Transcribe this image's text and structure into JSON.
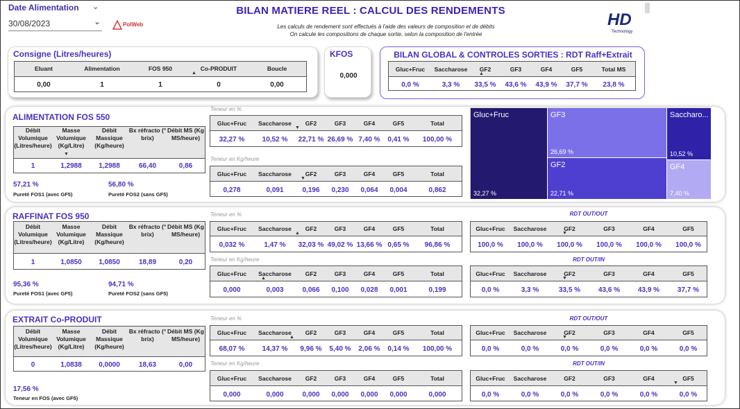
{
  "slicer": {
    "label": "Date Alimentation",
    "date": "30/08/2023"
  },
  "brand": {
    "polweb": "PolWeb",
    "hd": "HD",
    "hd_sub": "Technology"
  },
  "header": {
    "title": "BILAN MATIERE REEL : CALCUL DES RENDEMENTS",
    "sub1": "Les calculs de rendement sont effectués à l'aide des valeurs de composition et de débits",
    "sub2": "On calcule les compositions de chaque sortie, selon la composition de l'entrée"
  },
  "consigne": {
    "title": "Consigne (Litres/heures)",
    "headers": [
      "Eluant",
      "Alimentation",
      "FOS 950",
      "Co-PRODUIT",
      "Boucle"
    ],
    "values": [
      "0,00",
      "1",
      "1",
      "0",
      "0,00"
    ]
  },
  "kfos": {
    "title": "KFOS",
    "value": "0,000"
  },
  "bilan": {
    "title": "BILAN GLOBAL & CONTROLES SORTIES : RDT Raff+Extrait",
    "headers": [
      "Gluc+Fruc",
      "Saccharose",
      "GF2",
      "GF3",
      "GF4",
      "GF5",
      "Total MS"
    ],
    "values": [
      "0,0 %",
      "3,3 %",
      "33,5 %",
      "43,6 %",
      "43,9 %",
      "37,7 %",
      "23,8 %"
    ]
  },
  "labels": {
    "teneur_pct": "Teneur en %",
    "teneur_kg": "Teneur en Kg/heure",
    "rdt_outout": "RDT OUT/OUT",
    "rdt_outin": "RDT OUT/IN"
  },
  "comp_headers": [
    "Gluc+Fruc",
    "Saccharose",
    "GF2",
    "GF3",
    "GF4",
    "GF5",
    "Total"
  ],
  "rdt_headers": [
    "Gluc+Fruc",
    "Saccharose",
    "GF2",
    "GF3",
    "GF4",
    "GF5"
  ],
  "flow_headers": [
    "Débit Volumique (Litres/heure)",
    "Masse Volumique (Kg/Litre)",
    "Débit Massique (Kg/heure)",
    "Bx réfracto (° brix)",
    "Débit MS (Kg MS/heure)"
  ],
  "alim": {
    "title": "ALIMENTATION FOS 550",
    "flow": [
      "1",
      "1,2988",
      "1,2988",
      "66,40",
      "0,86"
    ],
    "pur1": "57,21 %",
    "pur1_lbl": "Pureté FOS1 (avec GF5)",
    "pur2": "56,80 %",
    "pur2_lbl": "Pureté FOS2 (sans GF5)",
    "pct": [
      "32,27 %",
      "10,52 %",
      "22,71 %",
      "26,69 %",
      "7,40 %",
      "0,41 %",
      "100,00 %"
    ],
    "kg": [
      "0,278",
      "0,091",
      "0,196",
      "0,230",
      "0,064",
      "0,004",
      "0,862"
    ]
  },
  "treemap": [
    {
      "name": "Gluc+Fruc",
      "value": "32,27 %",
      "color": "#23196e"
    },
    {
      "name": "GF3",
      "value": "26,69 %",
      "color": "#7b70e8"
    },
    {
      "name": "Saccharo...",
      "value": "10,52 %",
      "color": "#2f21a8"
    },
    {
      "name": "GF2",
      "value": "22,71 %",
      "color": "#4e3fd0"
    },
    {
      "name": "GF4",
      "value": "7,40 %",
      "color": "#b2abf4"
    }
  ],
  "raff": {
    "title": "RAFFINAT FOS 950",
    "flow": [
      "1",
      "1,0850",
      "1,0850",
      "18,89",
      "0,20"
    ],
    "pur1": "95,36 %",
    "pur1_lbl": "Pureté FOS1 (avec GF5)",
    "pur2": "94,71 %",
    "pur2_lbl": "Pureté FOS2 (sans GF5)",
    "pct": [
      "0,032 %",
      "1,47 %",
      "32,03 %",
      "49,02 %",
      "13,66 %",
      "0,65 %",
      "96,86 %"
    ],
    "kg": [
      "0,000",
      "0,003",
      "0,066",
      "0,100",
      "0,028",
      "0,001",
      "0,199"
    ],
    "rdt_oo": [
      "100,0 %",
      "100,0 %",
      "100,0 %",
      "100,0 %",
      "100,0 %",
      "100,0 %"
    ],
    "rdt_oi": [
      "0,0 %",
      "3,3 %",
      "33,5 %",
      "43,6 %",
      "43,9 %",
      "37,7 %"
    ]
  },
  "extr": {
    "title": "EXTRAIT Co-PRODUIT",
    "flow": [
      "0",
      "1,0838",
      "0,0000",
      "18,63",
      "0,00"
    ],
    "pur1": "17,56 %",
    "pur1_lbl": "Teneur en FOS (avec GF5)",
    "pct": [
      "68,07 %",
      "14,37 %",
      "9,96 %",
      "5,40 %",
      "2,06 %",
      "0,14 %",
      "100,00 %"
    ],
    "kg": [
      "0,000",
      "0,000",
      "0,000",
      "0,000",
      "0,000",
      "0,000",
      "0,000"
    ],
    "rdt_oo": [
      "0,0 %",
      "0,0 %",
      "0,0 %",
      "0,0 %",
      "0,0 %",
      "0,0 %"
    ],
    "rdt_oi": [
      "0,0 %",
      "0,0 %",
      "0,0 %",
      "0,0 %",
      "0,0 %",
      "0,0 %"
    ]
  }
}
